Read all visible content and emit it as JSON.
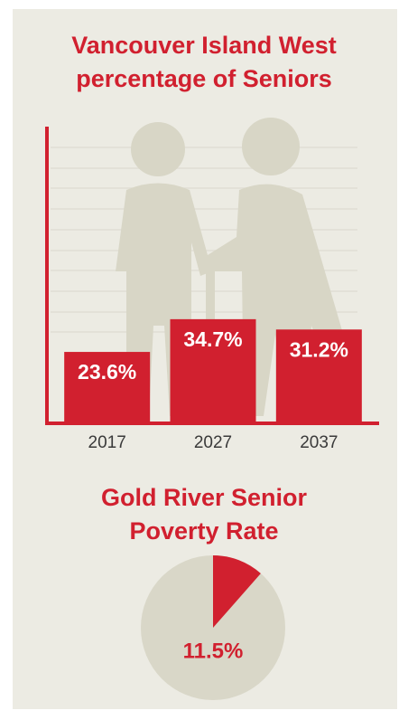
{
  "chart_data": [
    {
      "type": "bar",
      "title": "Vancouver Island West percentage of Seniors",
      "categories": [
        "2017",
        "2027",
        "2037"
      ],
      "values": [
        23.6,
        34.7,
        31.2
      ],
      "value_labels": [
        "23.6%",
        "34.7%",
        "31.2%"
      ],
      "color": "#d1202f",
      "ylim": [
        0,
        100
      ]
    },
    {
      "type": "pie",
      "title": "Gold River Senior Poverty Rate",
      "values": [
        11.5
      ],
      "value_labels": [
        "11.5%"
      ],
      "color": "#d1202f",
      "background_color": "#d9d7c8"
    }
  ]
}
